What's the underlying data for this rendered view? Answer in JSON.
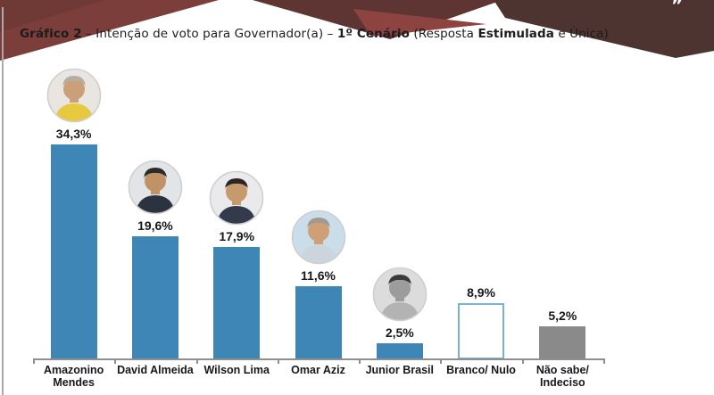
{
  "page": {
    "title_parts": [
      {
        "text": "Gráfico 2",
        "bold": true
      },
      {
        "text": " – Intenção de voto para Governador(a) – ",
        "bold": false
      },
      {
        "text": "1º Cenário",
        "bold": true
      },
      {
        "text": " (Resposta ",
        "bold": false
      },
      {
        "text": "Estimulada",
        "bold": true
      },
      {
        "text": " e Única)",
        "bold": false
      }
    ],
    "decor_quote": "”"
  },
  "colors": {
    "bar_blue": "#3e86b5",
    "bar_white_border": "#7ab3cf",
    "bar_gray": "#8a8a8a",
    "ribbon_left": "#7b3e3b",
    "ribbon_mid": "#5e3532",
    "ribbon_mid_facet": "#8d4340",
    "ribbon_right": "#4e3431",
    "text_dark": "#17171c",
    "axis_gray": "#8f8f8f"
  },
  "chart_data": {
    "type": "bar",
    "title": "Gráfico 2 – Intenção de voto para Governador(a) – 1º Cenário (Resposta Estimulada e Única)",
    "categories": [
      "Amazonino Mendes",
      "David Almeida",
      "Wilson Lima",
      "Omar Aziz",
      "Junior Brasil",
      "Branco/ Nulo",
      "Não sabe/ Indeciso"
    ],
    "values": [
      34.3,
      19.6,
      17.9,
      11.6,
      2.5,
      8.9,
      5.2
    ],
    "value_labels": [
      "34,3%",
      "19,6%",
      "17,9%",
      "11,6%",
      "2,5%",
      "8,9%",
      "5,2%"
    ],
    "xlabel": "",
    "ylabel": "",
    "ylim": [
      0,
      40
    ],
    "grid": false,
    "legend": false,
    "bar_styles": [
      {
        "fill": "#3e86b5",
        "border": "none"
      },
      {
        "fill": "#3e86b5",
        "border": "none"
      },
      {
        "fill": "#3e86b5",
        "border": "none"
      },
      {
        "fill": "#3e86b5",
        "border": "none"
      },
      {
        "fill": "#3e86b5",
        "border": "none"
      },
      {
        "fill": "#ffffff",
        "border": "#7ab3cf"
      },
      {
        "fill": "#8a8a8a",
        "border": "none"
      }
    ],
    "avatars": [
      {
        "name": "amazonino-mendes-photo",
        "bg": "#e9e6e1",
        "skin": "#c9a078",
        "hair": "#b4ada3",
        "shirt": "#e6c93f"
      },
      {
        "name": "david-almeida-photo",
        "bg": "#e2e5e8",
        "skin": "#c29267",
        "hair": "#2e2a28",
        "shirt": "#2b3340"
      },
      {
        "name": "wilson-lima-photo",
        "bg": "#eae9ec",
        "skin": "#c79a6d",
        "hair": "#2b2624",
        "shirt": "#323a4b"
      },
      {
        "name": "omar-aziz-photo",
        "bg": "#c9ddea",
        "skin": "#cf9f77",
        "hair": "#a39a8f",
        "shirt": "#ccd5db"
      },
      {
        "name": "junior-brasil-photo",
        "bg": "#dcdcdc",
        "skin": "#9c9c9c",
        "hair": "#3a3a3a",
        "shirt": "#b3b3b3"
      },
      null,
      null
    ]
  }
}
